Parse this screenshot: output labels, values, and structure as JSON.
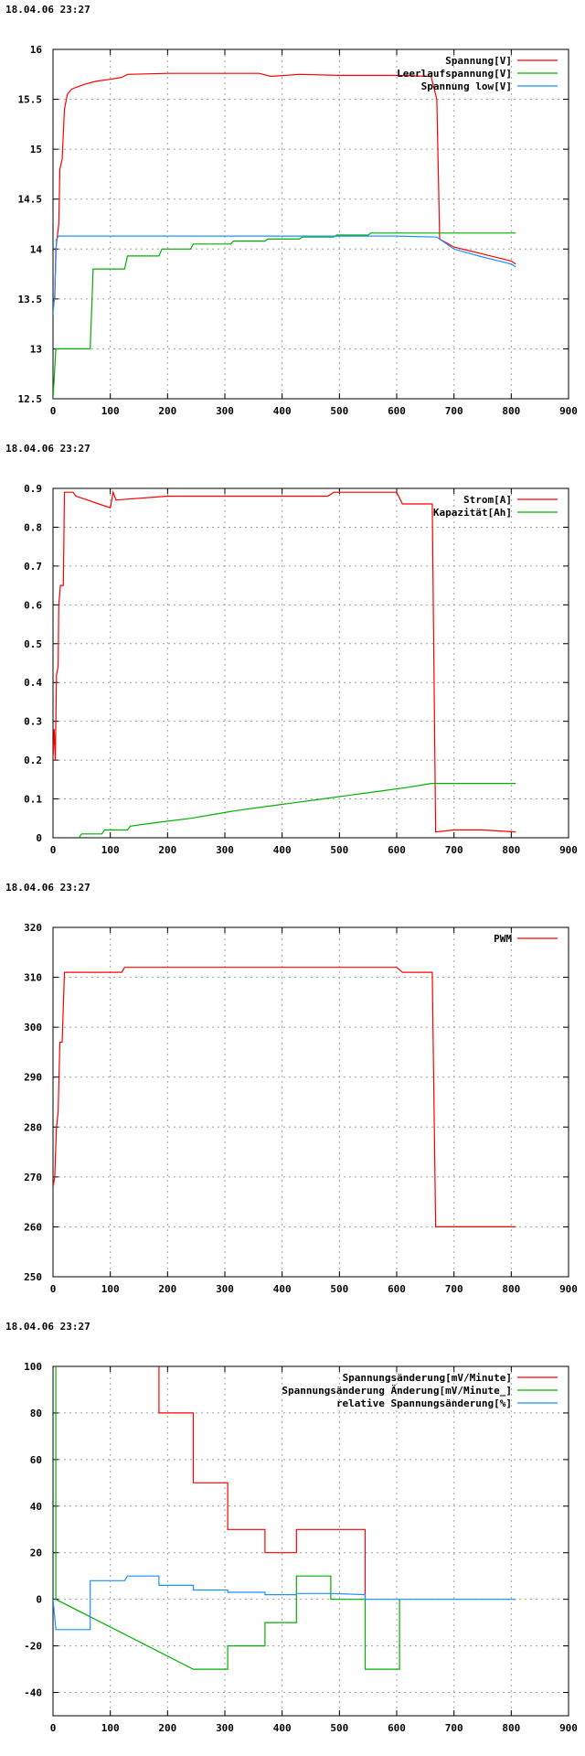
{
  "timestamp": "18.04.06 23:27",
  "chart_data": [
    {
      "type": "line",
      "title": "",
      "xlabel": "",
      "ylabel": "",
      "xlim": [
        0,
        900
      ],
      "ylim": [
        12.5,
        16
      ],
      "xticks": [
        0,
        100,
        200,
        300,
        400,
        500,
        600,
        700,
        800,
        900
      ],
      "yticks": [
        12.5,
        13,
        13.5,
        14,
        14.5,
        15,
        15.5,
        16
      ],
      "grid": true,
      "legend_position": "top-right",
      "series": [
        {
          "name": "Spannung[V]",
          "color": "#ff0000",
          "points": [
            [
              0,
              13.45
            ],
            [
              3,
              13.5
            ],
            [
              5,
              14.0
            ],
            [
              10,
              14.25
            ],
            [
              12,
              14.8
            ],
            [
              16,
              14.9
            ],
            [
              20,
              15.4
            ],
            [
              25,
              15.55
            ],
            [
              32,
              15.6
            ],
            [
              40,
              15.62
            ],
            [
              55,
              15.65
            ],
            [
              75,
              15.68
            ],
            [
              100,
              15.7
            ],
            [
              120,
              15.72
            ],
            [
              130,
              15.75
            ],
            [
              200,
              15.76
            ],
            [
              360,
              15.76
            ],
            [
              380,
              15.73
            ],
            [
              430,
              15.75
            ],
            [
              500,
              15.74
            ],
            [
              600,
              15.74
            ],
            [
              660,
              15.73
            ],
            [
              670,
              15.5
            ],
            [
              675,
              14.1
            ],
            [
              700,
              14.02
            ],
            [
              750,
              13.95
            ],
            [
              800,
              13.88
            ],
            [
              808,
              13.85
            ]
          ]
        },
        {
          "name": "Leerlaufspannung[V]",
          "color": "#00b000",
          "points": [
            [
              0,
              12.5
            ],
            [
              5,
              13.0
            ],
            [
              65,
              13.0
            ],
            [
              70,
              13.8
            ],
            [
              125,
              13.8
            ],
            [
              130,
              13.93
            ],
            [
              185,
              13.93
            ],
            [
              190,
              14.0
            ],
            [
              240,
              14.0
            ],
            [
              245,
              14.05
            ],
            [
              310,
              14.05
            ],
            [
              315,
              14.08
            ],
            [
              370,
              14.08
            ],
            [
              375,
              14.1
            ],
            [
              430,
              14.1
            ],
            [
              435,
              14.12
            ],
            [
              490,
              14.12
            ],
            [
              495,
              14.14
            ],
            [
              550,
              14.14
            ],
            [
              555,
              14.16
            ],
            [
              808,
              14.16
            ]
          ]
        },
        {
          "name": "Spannung low[V]",
          "color": "#1e90ff",
          "points": [
            [
              0,
              13.35
            ],
            [
              3,
              13.55
            ],
            [
              6,
              14.1
            ],
            [
              10,
              14.13
            ],
            [
              300,
              14.13
            ],
            [
              600,
              14.13
            ],
            [
              670,
              14.12
            ],
            [
              680,
              14.08
            ],
            [
              700,
              14.0
            ],
            [
              750,
              13.92
            ],
            [
              800,
              13.85
            ],
            [
              808,
              13.82
            ]
          ]
        }
      ]
    },
    {
      "type": "line",
      "title": "",
      "xlabel": "",
      "ylabel": "",
      "xlim": [
        0,
        900
      ],
      "ylim": [
        0,
        0.9
      ],
      "xticks": [
        0,
        100,
        200,
        300,
        400,
        500,
        600,
        700,
        800,
        900
      ],
      "yticks": [
        0,
        0.1,
        0.2,
        0.3,
        0.4,
        0.5,
        0.6,
        0.7,
        0.8,
        0.9
      ],
      "grid": true,
      "legend_position": "top-right",
      "series": [
        {
          "name": "Strom[A]",
          "color": "#ff0000",
          "points": [
            [
              0,
              0.2
            ],
            [
              2,
              0.28
            ],
            [
              4,
              0.2
            ],
            [
              6,
              0.42
            ],
            [
              9,
              0.44
            ],
            [
              10,
              0.6
            ],
            [
              13,
              0.65
            ],
            [
              18,
              0.65
            ],
            [
              20,
              0.89
            ],
            [
              35,
              0.89
            ],
            [
              40,
              0.88
            ],
            [
              60,
              0.87
            ],
            [
              80,
              0.86
            ],
            [
              100,
              0.85
            ],
            [
              105,
              0.89
            ],
            [
              110,
              0.87
            ],
            [
              200,
              0.88
            ],
            [
              380,
              0.88
            ],
            [
              480,
              0.88
            ],
            [
              490,
              0.89
            ],
            [
              600,
              0.89
            ],
            [
              610,
              0.86
            ],
            [
              662,
              0.86
            ],
            [
              668,
              0.015
            ],
            [
              700,
              0.02
            ],
            [
              750,
              0.02
            ],
            [
              808,
              0.015
            ]
          ]
        },
        {
          "name": "Kapazität[Ah]",
          "color": "#00b000",
          "points": [
            [
              45,
              0.0
            ],
            [
              50,
              0.01
            ],
            [
              85,
              0.01
            ],
            [
              90,
              0.02
            ],
            [
              130,
              0.02
            ],
            [
              135,
              0.03
            ],
            [
              185,
              0.04
            ],
            [
              240,
              0.05
            ],
            [
              280,
              0.06
            ],
            [
              320,
              0.07
            ],
            [
              370,
              0.08
            ],
            [
              420,
              0.09
            ],
            [
              470,
              0.1
            ],
            [
              520,
              0.11
            ],
            [
              570,
              0.12
            ],
            [
              620,
              0.13
            ],
            [
              660,
              0.14
            ],
            [
              808,
              0.14
            ]
          ]
        }
      ]
    },
    {
      "type": "line",
      "title": "",
      "xlabel": "",
      "ylabel": "",
      "xlim": [
        0,
        900
      ],
      "ylim": [
        250,
        320
      ],
      "xticks": [
        0,
        100,
        200,
        300,
        400,
        500,
        600,
        700,
        800,
        900
      ],
      "yticks": [
        250,
        260,
        270,
        280,
        290,
        300,
        310,
        320
      ],
      "grid": true,
      "legend_position": "top-right",
      "series": [
        {
          "name": "PWM",
          "color": "#ff0000",
          "points": [
            [
              0,
              268
            ],
            [
              3,
              270
            ],
            [
              6,
              280
            ],
            [
              9,
              283
            ],
            [
              12,
              297
            ],
            [
              16,
              297
            ],
            [
              20,
              311
            ],
            [
              120,
              311
            ],
            [
              125,
              312
            ],
            [
              600,
              312
            ],
            [
              610,
              311
            ],
            [
              662,
              311
            ],
            [
              668,
              260
            ],
            [
              700,
              260
            ],
            [
              750,
              260
            ],
            [
              808,
              260
            ]
          ]
        }
      ]
    },
    {
      "type": "line",
      "title": "",
      "xlabel": "",
      "ylabel": "",
      "xlim": [
        0,
        900
      ],
      "ylim": [
        -50,
        100
      ],
      "xticks": [
        0,
        100,
        200,
        300,
        400,
        500,
        600,
        700,
        800,
        900
      ],
      "yticks": [
        -40,
        -20,
        0,
        20,
        40,
        60,
        80,
        100
      ],
      "grid": true,
      "legend_position": "top-right",
      "series": [
        {
          "name": "Spannungsänderung[mV/Minute]",
          "color": "#ff0000",
          "points": [
            [
              185,
              100
            ],
            [
              185,
              80
            ],
            [
              245,
              80
            ],
            [
              245,
              50
            ],
            [
              305,
              50
            ],
            [
              305,
              30
            ],
            [
              370,
              30
            ],
            [
              370,
              20
            ],
            [
              425,
              20
            ],
            [
              425,
              30
            ],
            [
              545,
              30
            ],
            [
              545,
              0
            ]
          ]
        },
        {
          "name": "Spannungsänderung Änderung[mV/Minute_]",
          "color": "#00b000",
          "points": [
            [
              5,
              100
            ],
            [
              5,
              0
            ],
            [
              245,
              -30
            ],
            [
              245,
              -30
            ],
            [
              305,
              -30
            ],
            [
              305,
              -20
            ],
            [
              370,
              -20
            ],
            [
              370,
              -10
            ],
            [
              425,
              -10
            ],
            [
              425,
              10
            ],
            [
              485,
              10
            ],
            [
              485,
              0
            ],
            [
              545,
              0
            ],
            [
              545,
              -30
            ],
            [
              605,
              -30
            ],
            [
              605,
              0
            ]
          ]
        },
        {
          "name": "relative Spannungsänderung[%]",
          "color": "#1e90ff",
          "points": [
            [
              0,
              0
            ],
            [
              5,
              -13
            ],
            [
              65,
              -13
            ],
            [
              65,
              8
            ],
            [
              125,
              8
            ],
            [
              130,
              10
            ],
            [
              185,
              10
            ],
            [
              185,
              6
            ],
            [
              245,
              6
            ],
            [
              245,
              4
            ],
            [
              305,
              4
            ],
            [
              305,
              3
            ],
            [
              370,
              3
            ],
            [
              370,
              2
            ],
            [
              425,
              2
            ],
            [
              425,
              2.5
            ],
            [
              485,
              2.5
            ],
            [
              545,
              2
            ],
            [
              545,
              0
            ],
            [
              605,
              0
            ],
            [
              808,
              0
            ]
          ]
        }
      ]
    }
  ]
}
